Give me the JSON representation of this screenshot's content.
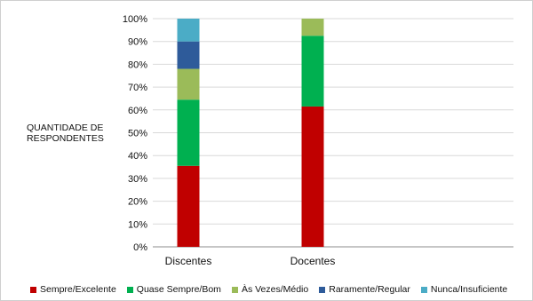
{
  "chart_data": {
    "type": "bar",
    "stacked": true,
    "percent": true,
    "ylabel": "QUANTIDADE DE RESPONDENTES",
    "categories": [
      "Discentes",
      "Docentes"
    ],
    "yticks": [
      "0%",
      "10%",
      "20%",
      "30%",
      "40%",
      "50%",
      "60%",
      "70%",
      "80%",
      "90%",
      "100%"
    ],
    "ylim": [
      0,
      100
    ],
    "grid": true,
    "legend_position": "bottom",
    "series": [
      {
        "name": "Sempre/Excelente",
        "color": "#c00000",
        "values": [
          35.5,
          61.5
        ]
      },
      {
        "name": "Quase Sempre/Bom",
        "color": "#00b050",
        "values": [
          29,
          31
        ]
      },
      {
        "name": "Às Vezes/Médio",
        "color": "#9bbb59",
        "values": [
          13.5,
          7.5
        ]
      },
      {
        "name": "Raramente/Regular",
        "color": "#2e5b9a",
        "values": [
          12,
          0
        ]
      },
      {
        "name": "Nunca/Insuficiente",
        "color": "#4bacc6",
        "values": [
          10,
          0
        ]
      }
    ]
  }
}
